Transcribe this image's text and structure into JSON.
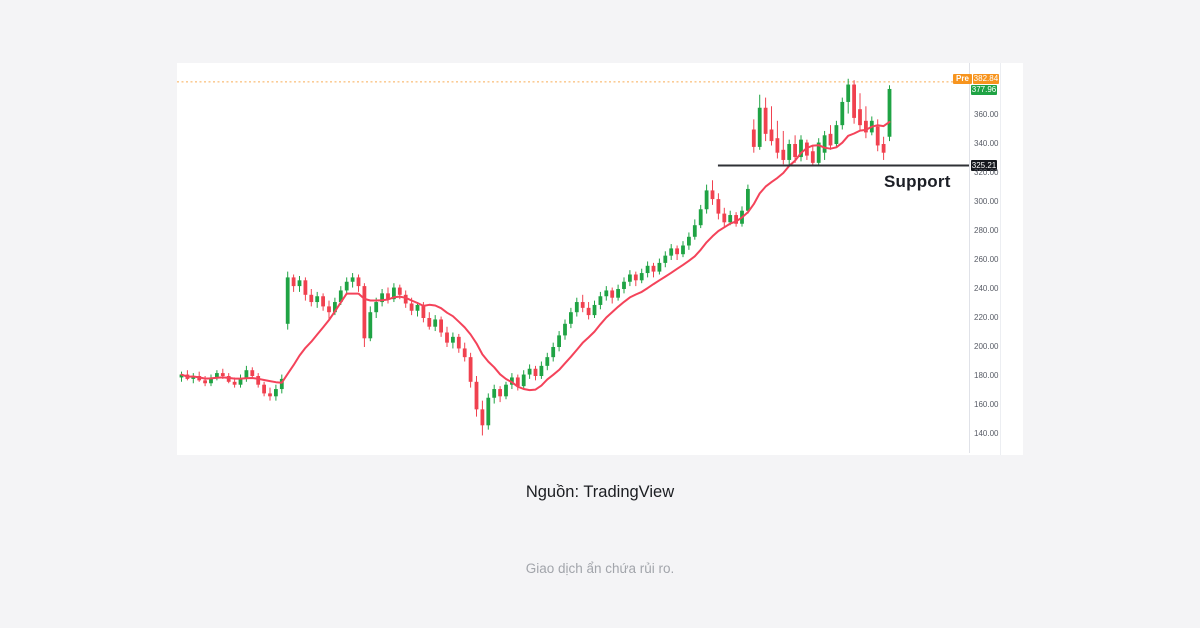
{
  "page": {
    "background": "#f4f4f6"
  },
  "captions": {
    "source": "Nguồn: TradingView",
    "disclaimer": "Giao dịch ẩn chứa rủi ro."
  },
  "chart": {
    "annotations": {
      "support_label": "Support",
      "premarket_badge": "Pre",
      "premarket_price": "382.84",
      "last_price": "377.96",
      "support_price": "325.21"
    },
    "colors": {
      "up": "#1fa344",
      "down": "#f0414f",
      "ma_line": "#f4435a",
      "premarket": "#f7941e",
      "last_label_bg": "#1fa344",
      "support_line": "#2f3136",
      "axis_text": "#585c66"
    }
  },
  "chart_data": {
    "type": "candlestick",
    "description": "Daily candlestick chart with red moving-average overlay, horizontal support level, pre-market price line and price axis labels",
    "y_ticks": [
      360,
      340,
      320,
      300,
      280,
      260,
      240,
      220,
      200,
      180,
      160,
      140
    ],
    "ylim": [
      125,
      396
    ],
    "premarket_price": 382.84,
    "last_close": 377.96,
    "support": {
      "level": 325.21,
      "x_start_frac": 0.683
    },
    "ma_window": 11,
    "ohlc": [
      [
        179,
        183,
        176,
        181
      ],
      [
        181,
        184,
        177,
        178
      ],
      [
        178,
        182,
        175,
        180
      ],
      [
        180,
        183,
        176,
        177
      ],
      [
        177,
        180,
        173,
        175
      ],
      [
        175,
        181,
        173,
        179
      ],
      [
        179,
        184,
        177,
        182
      ],
      [
        182,
        185,
        178,
        180
      ],
      [
        180,
        182,
        175,
        176
      ],
      [
        176,
        179,
        172,
        174
      ],
      [
        174,
        181,
        172,
        178
      ],
      [
        178,
        187,
        176,
        184
      ],
      [
        184,
        186,
        178,
        180
      ],
      [
        180,
        182,
        172,
        174
      ],
      [
        174,
        176,
        166,
        168
      ],
      [
        168,
        172,
        163,
        166
      ],
      [
        166,
        174,
        163,
        171
      ],
      [
        171,
        181,
        168,
        178
      ],
      [
        216,
        252,
        212,
        248
      ],
      [
        248,
        250,
        238,
        242
      ],
      [
        242,
        249,
        238,
        246
      ],
      [
        246,
        248,
        232,
        236
      ],
      [
        236,
        240,
        228,
        231
      ],
      [
        231,
        238,
        227,
        235
      ],
      [
        235,
        237,
        225,
        228
      ],
      [
        228,
        232,
        219,
        224
      ],
      [
        224,
        234,
        222,
        231
      ],
      [
        231,
        242,
        229,
        239
      ],
      [
        239,
        248,
        236,
        245
      ],
      [
        245,
        251,
        241,
        248
      ],
      [
        248,
        250,
        238,
        242
      ],
      [
        242,
        244,
        200,
        206
      ],
      [
        206,
        228,
        204,
        224
      ],
      [
        224,
        234,
        220,
        231
      ],
      [
        231,
        240,
        228,
        237
      ],
      [
        237,
        241,
        230,
        233
      ],
      [
        233,
        244,
        231,
        241
      ],
      [
        241,
        243,
        233,
        236
      ],
      [
        236,
        239,
        227,
        230
      ],
      [
        230,
        234,
        222,
        225
      ],
      [
        225,
        231,
        221,
        229
      ],
      [
        229,
        231,
        217,
        220
      ],
      [
        220,
        224,
        212,
        214
      ],
      [
        214,
        222,
        211,
        219
      ],
      [
        219,
        221,
        207,
        210
      ],
      [
        210,
        214,
        200,
        203
      ],
      [
        203,
        210,
        199,
        207
      ],
      [
        207,
        209,
        196,
        199
      ],
      [
        199,
        203,
        190,
        193
      ],
      [
        193,
        196,
        172,
        176
      ],
      [
        176,
        180,
        152,
        157
      ],
      [
        157,
        163,
        139,
        146
      ],
      [
        146,
        168,
        143,
        165
      ],
      [
        165,
        174,
        161,
        171
      ],
      [
        171,
        173,
        162,
        166
      ],
      [
        166,
        176,
        164,
        174
      ],
      [
        174,
        182,
        171,
        179
      ],
      [
        179,
        181,
        170,
        173
      ],
      [
        173,
        184,
        171,
        181
      ],
      [
        181,
        188,
        178,
        185
      ],
      [
        185,
        187,
        177,
        180
      ],
      [
        180,
        190,
        178,
        187
      ],
      [
        187,
        196,
        184,
        193
      ],
      [
        193,
        203,
        190,
        200
      ],
      [
        200,
        211,
        197,
        208
      ],
      [
        208,
        219,
        205,
        216
      ],
      [
        216,
        227,
        213,
        224
      ],
      [
        224,
        234,
        221,
        231
      ],
      [
        231,
        236,
        224,
        227
      ],
      [
        227,
        231,
        219,
        222
      ],
      [
        222,
        232,
        220,
        229
      ],
      [
        229,
        238,
        226,
        235
      ],
      [
        235,
        242,
        232,
        239
      ],
      [
        239,
        241,
        230,
        234
      ],
      [
        234,
        243,
        232,
        240
      ],
      [
        240,
        248,
        237,
        245
      ],
      [
        245,
        253,
        242,
        250
      ],
      [
        250,
        252,
        242,
        246
      ],
      [
        246,
        254,
        244,
        251
      ],
      [
        251,
        259,
        248,
        256
      ],
      [
        256,
        258,
        248,
        252
      ],
      [
        252,
        261,
        250,
        258
      ],
      [
        258,
        266,
        255,
        263
      ],
      [
        263,
        271,
        260,
        268
      ],
      [
        268,
        270,
        260,
        264
      ],
      [
        264,
        273,
        262,
        270
      ],
      [
        270,
        279,
        267,
        276
      ],
      [
        276,
        288,
        274,
        284
      ],
      [
        284,
        298,
        282,
        295
      ],
      [
        295,
        312,
        292,
        308
      ],
      [
        308,
        315,
        298,
        302
      ],
      [
        302,
        306,
        288,
        292
      ],
      [
        292,
        296,
        283,
        286
      ],
      [
        286,
        294,
        284,
        291
      ],
      [
        291,
        293,
        283,
        285
      ],
      [
        285,
        297,
        283,
        294
      ],
      [
        294,
        312,
        292,
        309
      ],
      [
        350,
        357,
        334,
        338
      ],
      [
        338,
        374,
        336,
        365
      ],
      [
        365,
        372,
        342,
        347
      ],
      [
        350,
        366,
        339,
        342
      ],
      [
        344,
        356,
        330,
        334
      ],
      [
        336,
        349,
        326,
        329
      ],
      [
        329,
        343,
        324.5,
        340
      ],
      [
        340,
        346,
        327,
        331
      ],
      [
        331,
        346,
        328,
        343
      ],
      [
        341,
        343,
        329,
        332
      ],
      [
        335,
        339,
        324.5,
        327
      ],
      [
        327,
        344,
        325,
        341
      ],
      [
        334,
        349,
        329,
        346
      ],
      [
        347,
        353,
        336,
        339
      ],
      [
        340,
        356,
        338,
        353
      ],
      [
        353,
        372,
        350,
        369
      ],
      [
        369,
        385,
        361,
        381
      ],
      [
        381,
        384,
        354,
        358
      ],
      [
        364,
        375,
        349,
        353
      ],
      [
        356,
        366,
        344,
        348
      ],
      [
        348,
        359,
        346,
        356
      ],
      [
        352,
        357,
        335,
        339
      ],
      [
        340,
        345,
        329,
        334
      ],
      [
        345,
        380.5,
        342,
        377.96
      ]
    ]
  }
}
